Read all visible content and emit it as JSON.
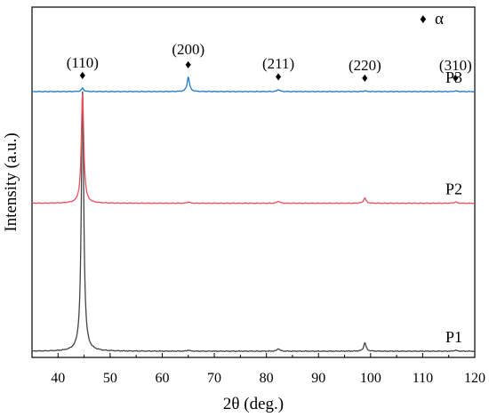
{
  "chart_data": {
    "type": "line",
    "title": "",
    "xlabel": "2θ (deg.)",
    "ylabel": "Intensity (a.u.)",
    "xlim": [
      35,
      120
    ],
    "xticks": [
      40,
      50,
      60,
      70,
      80,
      90,
      100,
      110,
      120
    ],
    "yticks_shown": false,
    "grid": false,
    "legend": {
      "symbol": "♦",
      "label": "α",
      "placement": "top-right"
    },
    "peak_marker_symbol": "♦",
    "peaks": [
      {
        "hkl": "(110)",
        "two_theta": 44.7
      },
      {
        "hkl": "(200)",
        "two_theta": 65.0
      },
      {
        "hkl": "(211)",
        "two_theta": 82.3
      },
      {
        "hkl": "(220)",
        "two_theta": 98.9
      },
      {
        "hkl": "(310)",
        "two_theta": 116.3
      }
    ],
    "series": [
      {
        "name": "P1",
        "color": "#444444",
        "offset": 0,
        "peak_heights": [
          {
            "two_theta": 44.7,
            "h": 100
          },
          {
            "two_theta": 65.0,
            "h": 0.4
          },
          {
            "two_theta": 82.3,
            "h": 1.0
          },
          {
            "two_theta": 98.9,
            "h": 3.2
          },
          {
            "two_theta": 116.3,
            "h": 0.4
          }
        ]
      },
      {
        "name": "P2",
        "color": "#e8505a",
        "offset": 57,
        "peak_heights": [
          {
            "two_theta": 44.7,
            "h": 42
          },
          {
            "two_theta": 65.0,
            "h": 0.5
          },
          {
            "two_theta": 82.3,
            "h": 0.8
          },
          {
            "two_theta": 98.9,
            "h": 2.0
          },
          {
            "two_theta": 116.3,
            "h": 0.5
          }
        ]
      },
      {
        "name": "P3",
        "color": "#1f78c8",
        "offset": 100,
        "peak_heights": [
          {
            "two_theta": 44.7,
            "h": 1.3
          },
          {
            "two_theta": 65.0,
            "h": 5.5
          },
          {
            "two_theta": 82.3,
            "h": 0.8
          },
          {
            "two_theta": 98.9,
            "h": 0.3
          },
          {
            "two_theta": 116.3,
            "h": 0.3
          }
        ]
      }
    ]
  }
}
